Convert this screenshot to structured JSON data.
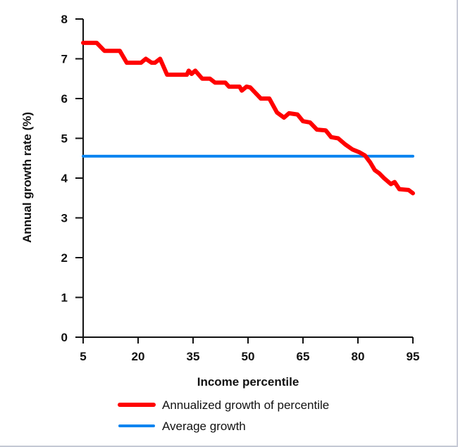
{
  "chart_data": {
    "type": "line",
    "title": "",
    "xlabel": "Income percentile",
    "ylabel": "Annual growth rate (%)",
    "xlim": [
      5,
      95
    ],
    "ylim": [
      0,
      8
    ],
    "xticks": [
      5,
      20,
      35,
      50,
      65,
      80,
      95
    ],
    "yticks": [
      0,
      1,
      2,
      3,
      4,
      5,
      6,
      7,
      8
    ],
    "grid": false,
    "legend_position": "bottom",
    "series": [
      {
        "name": "Annualized growth of percentile",
        "color": "#ff0000",
        "x": [
          5,
          8.7,
          10.8,
          15,
          16.9,
          20.8,
          22.1,
          23.7,
          24.6,
          26,
          27.9,
          33.3,
          33.8,
          34.6,
          35.6,
          37.5,
          39.6,
          41,
          43.8,
          44.8,
          47.7,
          48.3,
          49.6,
          50.6,
          53.5,
          55.8,
          57.9,
          59.8,
          61.2,
          63.5,
          65,
          66.9,
          68.8,
          71.2,
          72.7,
          74.6,
          76.5,
          78.5,
          80.4,
          81.9,
          83.3,
          84.6,
          85.8,
          87.1,
          89,
          90,
          91.3,
          93.8,
          95
        ],
        "y": [
          7.4,
          7.4,
          7.2,
          7.2,
          6.9,
          6.9,
          7.0,
          6.9,
          6.9,
          7.0,
          6.6,
          6.6,
          6.7,
          6.62,
          6.7,
          6.5,
          6.5,
          6.4,
          6.4,
          6.3,
          6.3,
          6.2,
          6.3,
          6.28,
          6.0,
          6.0,
          5.65,
          5.52,
          5.63,
          5.6,
          5.43,
          5.4,
          5.22,
          5.2,
          5.03,
          5.0,
          4.85,
          4.72,
          4.65,
          4.57,
          4.4,
          4.2,
          4.12,
          4.0,
          3.85,
          3.9,
          3.72,
          3.7,
          3.62
        ]
      },
      {
        "name": "Average growth",
        "color": "#0a84f0",
        "x": [
          5,
          95
        ],
        "y": [
          4.55,
          4.55
        ]
      }
    ]
  }
}
